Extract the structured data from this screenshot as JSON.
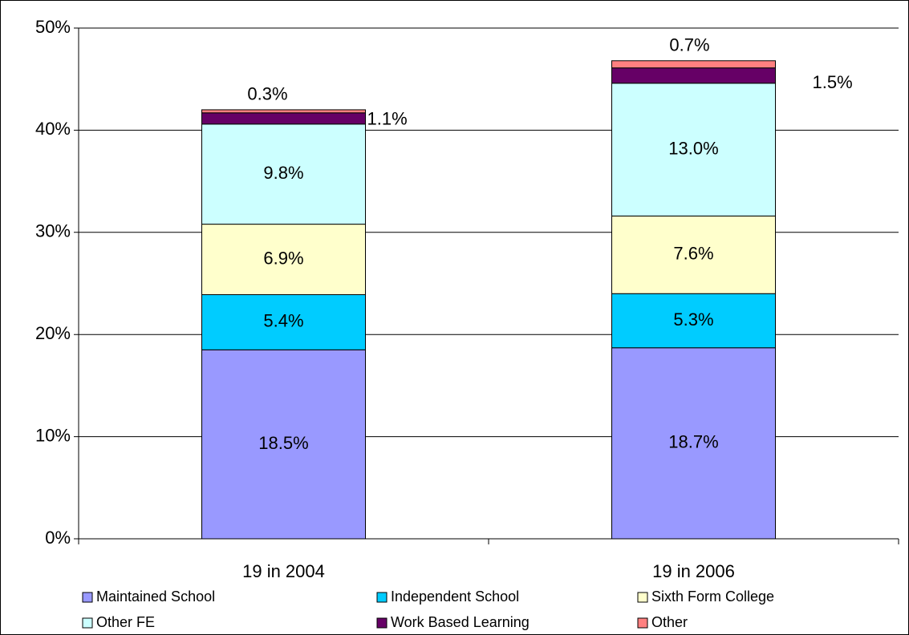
{
  "chart_data": {
    "type": "stacked_bar",
    "categories": [
      "19 in 2004",
      "19 in 2006"
    ],
    "series": [
      {
        "name": "Maintained School",
        "color": "#9999ff",
        "values": [
          18.5,
          18.7
        ],
        "value_labels": [
          "18.5%",
          "18.7%"
        ]
      },
      {
        "name": "Independent School",
        "color": "#00ccff",
        "values": [
          5.4,
          5.3
        ],
        "value_labels": [
          "5.4%",
          "5.3%"
        ]
      },
      {
        "name": "Sixth Form College",
        "color": "#ffffcc",
        "values": [
          6.9,
          7.6
        ],
        "value_labels": [
          "6.9%",
          "7.6%"
        ]
      },
      {
        "name": "Other FE",
        "color": "#ccffff",
        "values": [
          9.8,
          13.0
        ],
        "value_labels": [
          "9.8%",
          "13.0%"
        ]
      },
      {
        "name": "Work Based Learning",
        "color": "#660066",
        "values": [
          1.1,
          1.5
        ],
        "value_labels": [
          "1.1%",
          "1.5%"
        ]
      },
      {
        "name": "Other",
        "color": "#ff8080",
        "values": [
          0.3,
          0.7
        ],
        "value_labels": [
          "0.3%",
          "0.7%"
        ]
      }
    ],
    "ylim": [
      0,
      50
    ],
    "yticks": [
      {
        "value": 0,
        "label": "0%"
      },
      {
        "value": 10,
        "label": "10%"
      },
      {
        "value": 20,
        "label": "20%"
      },
      {
        "value": 30,
        "label": "30%"
      },
      {
        "value": 40,
        "label": "40%"
      },
      {
        "value": 50,
        "label": "50%"
      }
    ],
    "grid": true
  }
}
